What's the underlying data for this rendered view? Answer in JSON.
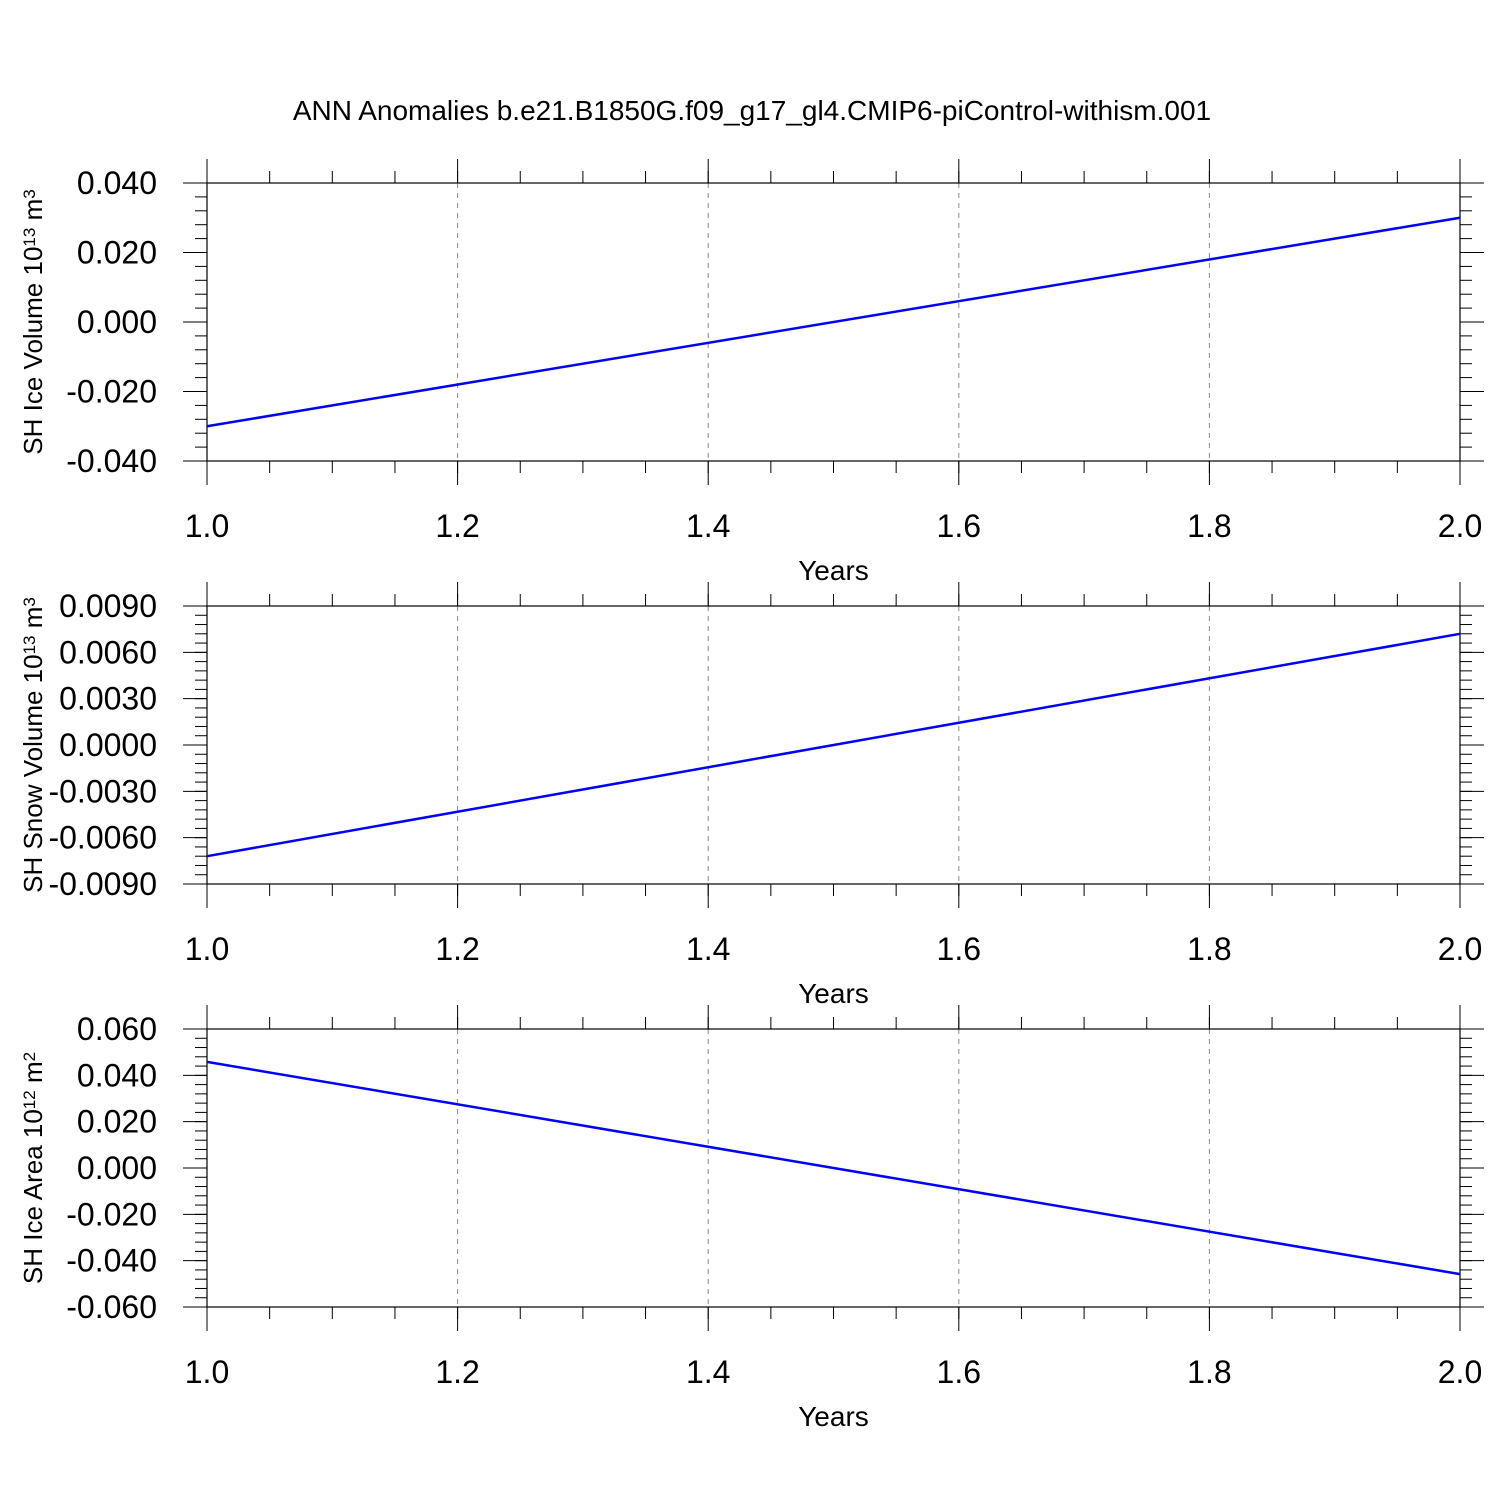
{
  "page_title": "ANN Anomalies b.e21.B1850G.f09_g17_gl4.CMIP6-piControl-withism.001",
  "line_color": "#0000ff",
  "chart_data": [
    {
      "type": "line",
      "ylabel_main": "SH Ice Volume 10",
      "ylabel_exp": "13",
      "ylabel_unit": " m",
      "ylabel_unit_exp": "3",
      "xlabel": "Years",
      "xlim": [
        1.0,
        2.0
      ],
      "ylim": [
        -0.04,
        0.04
      ],
      "xticks": [
        1.0,
        1.2,
        1.4,
        1.6,
        1.8,
        2.0
      ],
      "xtick_labels": [
        "1.0",
        "1.2",
        "1.4",
        "1.6",
        "1.8",
        "2.0"
      ],
      "yticks": [
        0.04,
        0.02,
        0.0,
        -0.02,
        -0.04
      ],
      "ytick_labels": [
        "0.040",
        "0.020",
        "0.000",
        "-0.020",
        "-0.040"
      ],
      "x_minor_step": 0.05,
      "y_minor_step": 0.004,
      "grid": "dashed vertical at major x ticks",
      "x": [
        1.0,
        2.0
      ],
      "y": [
        -0.03,
        0.03
      ]
    },
    {
      "type": "line",
      "ylabel_main": "SH Snow Volume 10",
      "ylabel_exp": "13",
      "ylabel_unit": " m",
      "ylabel_unit_exp": "3",
      "xlabel": "Years",
      "xlim": [
        1.0,
        2.0
      ],
      "ylim": [
        -0.009,
        0.009
      ],
      "xticks": [
        1.0,
        1.2,
        1.4,
        1.6,
        1.8,
        2.0
      ],
      "xtick_labels": [
        "1.0",
        "1.2",
        "1.4",
        "1.6",
        "1.8",
        "2.0"
      ],
      "yticks": [
        0.009,
        0.006,
        0.003,
        0.0,
        -0.003,
        -0.006,
        -0.009
      ],
      "ytick_labels": [
        "0.0090",
        "0.0060",
        "0.0030",
        "0.0000",
        "-0.0030",
        "-0.0060",
        "-0.0090"
      ],
      "x_minor_step": 0.05,
      "y_minor_step": 0.0006,
      "grid": "dashed vertical at major x ticks",
      "x": [
        1.0,
        2.0
      ],
      "y": [
        -0.0072,
        0.0072
      ]
    },
    {
      "type": "line",
      "ylabel_main": "SH Ice Area 10",
      "ylabel_exp": "12",
      "ylabel_unit": " m",
      "ylabel_unit_exp": "2",
      "xlabel": "Years",
      "xlim": [
        1.0,
        2.0
      ],
      "ylim": [
        -0.06,
        0.06
      ],
      "xticks": [
        1.0,
        1.2,
        1.4,
        1.6,
        1.8,
        2.0
      ],
      "xtick_labels": [
        "1.0",
        "1.2",
        "1.4",
        "1.6",
        "1.8",
        "2.0"
      ],
      "yticks": [
        0.06,
        0.04,
        0.02,
        0.0,
        -0.02,
        -0.04,
        -0.06
      ],
      "ytick_labels": [
        "0.060",
        "0.040",
        "0.020",
        "0.000",
        "-0.020",
        "-0.040",
        "-0.060"
      ],
      "x_minor_step": 0.05,
      "y_minor_step": 0.004,
      "grid": "dashed vertical at major x ticks",
      "x": [
        1.0,
        2.0
      ],
      "y": [
        0.0458,
        -0.0458
      ]
    }
  ]
}
